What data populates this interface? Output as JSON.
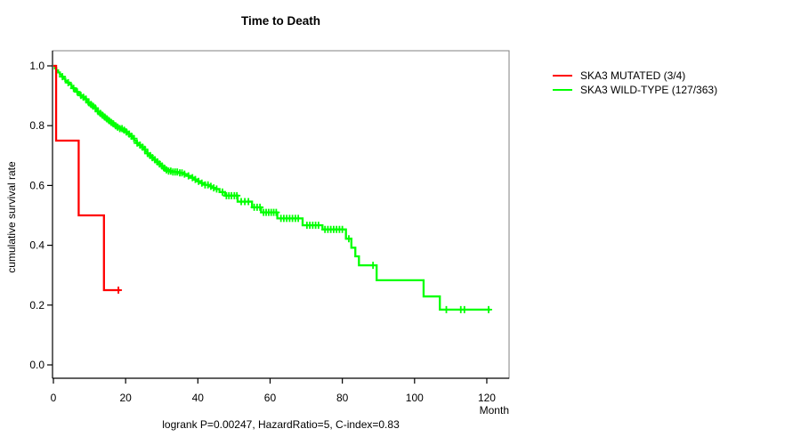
{
  "title": "Time to Death",
  "footer": "logrank P=0.00247, HazardRatio=5, C-index=0.83",
  "legend": [
    {
      "label": "SKA3 MUTATED (3/4)",
      "color": "#ff0000"
    },
    {
      "label": "SKA3 WILD-TYPE (127/363)",
      "color": "#00ff00"
    }
  ],
  "colors": {
    "axis": "#000000",
    "box": "#808080",
    "background": "#ffffff"
  },
  "chart_data": {
    "type": "line",
    "subtype": "kaplan-meier-step",
    "title": "Time to Death",
    "xlabel": "Month",
    "ylabel": "cumulative survival rate",
    "xlim": [
      0,
      126
    ],
    "ylim": [
      0,
      1.04
    ],
    "grid": false,
    "legend_position": "right-outside",
    "annotation": "logrank P=0.00247, HazardRatio=5, C-index=0.83",
    "x_ticks": [
      0,
      20,
      40,
      60,
      80,
      100,
      120
    ],
    "x_tick_labels": [
      "0",
      "20",
      "40",
      "60",
      "80",
      "100",
      "120"
    ],
    "y_ticks": [
      0.0,
      0.2,
      0.4,
      0.6,
      0.8,
      1.0
    ],
    "y_tick_labels": [
      "0.0",
      "0.2",
      "0.4",
      "0.6",
      "0.8",
      "1.0"
    ],
    "series": [
      {
        "name": "SKA3 MUTATED (3/4)",
        "color": "#ff0000",
        "end_month": 18.6,
        "censors": [
          18
        ],
        "steps": [
          [
            0,
            1.0
          ],
          [
            0.75,
            0.75
          ],
          [
            7,
            0.5
          ],
          [
            14,
            0.25
          ]
        ]
      },
      {
        "name": "SKA3 WILD-TYPE (127/363)",
        "color": "#00ff00",
        "end_month": 121,
        "censors": [
          2.5,
          4.1,
          5.6,
          6.6,
          7.6,
          8.3,
          9.0,
          9.8,
          10.4,
          11.0,
          11.6,
          12.4,
          13.0,
          13.6,
          14.2,
          14.8,
          15.4,
          16.0,
          16.6,
          17.2,
          17.8,
          18.4,
          19.0,
          19.6,
          20.2,
          21.0,
          21.6,
          22.3,
          23.2,
          24.0,
          24.7,
          25.3,
          26.1,
          26.8,
          27.4,
          28.1,
          28.8,
          29.4,
          30.1,
          30.7,
          31.3,
          31.9,
          32.5,
          33.1,
          33.7,
          34.3,
          35.0,
          35.6,
          36.3,
          37.4,
          38.5,
          39.3,
          40.2,
          41.1,
          42.0,
          42.8,
          43.6,
          44.4,
          45.2,
          46.8,
          47.9,
          48.6,
          49.3,
          50.1,
          50.8,
          52.0,
          53.0,
          54.0,
          55.6,
          56.4,
          57.2,
          58.2,
          58.9,
          59.6,
          60.3,
          61.0,
          61.7,
          63.0,
          63.8,
          64.6,
          65.4,
          66.2,
          67.0,
          67.8,
          70.2,
          71.0,
          71.8,
          72.6,
          73.4,
          75.2,
          76.0,
          76.8,
          77.6,
          78.4,
          79.2,
          80.0,
          81.8,
          88.5,
          108.8,
          112.8,
          113.8,
          120.5
        ],
        "steps": [
          [
            0,
            1.0
          ],
          [
            0.4,
            0.992
          ],
          [
            0.8,
            0.985
          ],
          [
            1.3,
            0.978
          ],
          [
            1.8,
            0.971
          ],
          [
            2.3,
            0.964
          ],
          [
            2.8,
            0.957
          ],
          [
            3.3,
            0.95
          ],
          [
            3.9,
            0.944
          ],
          [
            4.4,
            0.938
          ],
          [
            5.0,
            0.931
          ],
          [
            5.5,
            0.925
          ],
          [
            6.0,
            0.919
          ],
          [
            6.5,
            0.913
          ],
          [
            7.0,
            0.907
          ],
          [
            7.5,
            0.901
          ],
          [
            8.0,
            0.895
          ],
          [
            8.6,
            0.889
          ],
          [
            9.1,
            0.883
          ],
          [
            9.6,
            0.877
          ],
          [
            10.1,
            0.871
          ],
          [
            10.7,
            0.865
          ],
          [
            11.2,
            0.859
          ],
          [
            11.8,
            0.853
          ],
          [
            12.3,
            0.847
          ],
          [
            12.9,
            0.841
          ],
          [
            13.4,
            0.835
          ],
          [
            14.0,
            0.829
          ],
          [
            14.6,
            0.823
          ],
          [
            15.2,
            0.817
          ],
          [
            15.8,
            0.811
          ],
          [
            16.4,
            0.806
          ],
          [
            17.0,
            0.8
          ],
          [
            17.7,
            0.795
          ],
          [
            18.4,
            0.79
          ],
          [
            19.2,
            0.785
          ],
          [
            20.0,
            0.779
          ],
          [
            20.6,
            0.772
          ],
          [
            21.2,
            0.765
          ],
          [
            21.8,
            0.757
          ],
          [
            22.4,
            0.75
          ],
          [
            23.0,
            0.742
          ],
          [
            23.6,
            0.735
          ],
          [
            24.2,
            0.728
          ],
          [
            24.8,
            0.721
          ],
          [
            25.4,
            0.714
          ],
          [
            26.0,
            0.707
          ],
          [
            26.6,
            0.7
          ],
          [
            27.2,
            0.693
          ],
          [
            27.8,
            0.686
          ],
          [
            28.4,
            0.679
          ],
          [
            29.0,
            0.672
          ],
          [
            29.6,
            0.665
          ],
          [
            30.2,
            0.658
          ],
          [
            30.8,
            0.652
          ],
          [
            31.5,
            0.648
          ],
          [
            33.0,
            0.645
          ],
          [
            34.5,
            0.642
          ],
          [
            36.0,
            0.638
          ],
          [
            37.0,
            0.632
          ],
          [
            38.0,
            0.626
          ],
          [
            39.0,
            0.62
          ],
          [
            40.0,
            0.614
          ],
          [
            41.0,
            0.608
          ],
          [
            42.0,
            0.602
          ],
          [
            43.0,
            0.597
          ],
          [
            44.0,
            0.592
          ],
          [
            45.0,
            0.588
          ],
          [
            46.0,
            0.578
          ],
          [
            47.5,
            0.566
          ],
          [
            51.0,
            0.546
          ],
          [
            55.0,
            0.527
          ],
          [
            57.5,
            0.51
          ],
          [
            62.0,
            0.49
          ],
          [
            69.0,
            0.467
          ],
          [
            74.5,
            0.453
          ],
          [
            81.0,
            0.422
          ],
          [
            82.5,
            0.392
          ],
          [
            83.6,
            0.363
          ],
          [
            84.6,
            0.333
          ],
          [
            89.5,
            0.283
          ],
          [
            102.5,
            0.229
          ],
          [
            107.0,
            0.185
          ]
        ]
      }
    ]
  }
}
